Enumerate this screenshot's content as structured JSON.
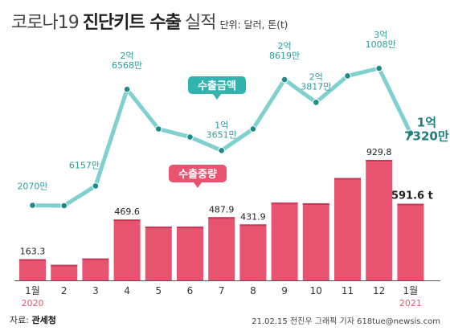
{
  "title": {
    "part1": "코로나19",
    "part2": "진단키트 수출",
    "part3": "실적",
    "unit": "단위: 달러, 톤(t)"
  },
  "chart_data": {
    "type": "bar+line",
    "categories": [
      "1월",
      "2",
      "3",
      "4",
      "5",
      "6",
      "7",
      "8",
      "9",
      "10",
      "11",
      "12",
      "1월"
    ],
    "year_labels": [
      {
        "index": 0,
        "text": "2020"
      },
      {
        "index": 12,
        "text": "2021"
      }
    ],
    "series": [
      {
        "name": "수출중량",
        "type": "bar",
        "unit": "t",
        "color": "#e8546f",
        "values": [
          163.3,
          120,
          169,
          469.6,
          415,
          415,
          487.9,
          431.9,
          600,
          595,
          790,
          929.8,
          591.6
        ],
        "data_labels": [
          {
            "index": 0,
            "text": "163.3"
          },
          {
            "index": 3,
            "text": "469.6"
          },
          {
            "index": 6,
            "text": "487.9"
          },
          {
            "index": 7,
            "text": "431.9"
          },
          {
            "index": 11,
            "text": "929.8"
          },
          {
            "index": 12,
            "text": "591.6 t"
          }
        ]
      },
      {
        "name": "수출금액",
        "type": "line",
        "unit": "달러",
        "color": "#7fd0cf",
        "values": [
          20700000,
          20000000,
          61570000,
          265680000,
          182000000,
          165000000,
          136510000,
          182000000,
          286190000,
          238170000,
          294000000,
          310080000,
          173200000
        ],
        "data_labels": [
          {
            "index": 0,
            "text": "2070만"
          },
          {
            "index": 2,
            "text": "6157만"
          },
          {
            "index": 3,
            "line1": "2억",
            "line2": "6568만"
          },
          {
            "index": 6,
            "line1": "1억",
            "line2": "3651만"
          },
          {
            "index": 8,
            "line1": "2억",
            "line2": "8619만"
          },
          {
            "index": 9,
            "line1": "2억",
            "line2": "3817만"
          },
          {
            "index": 11,
            "line1": "3억",
            "line2": "1008만"
          },
          {
            "index": 12,
            "line1": "1억",
            "line2": "7320만"
          }
        ]
      }
    ]
  },
  "footer": {
    "source_label": "자료:",
    "source": "관세청",
    "credit": "21.02.15 전진우 그래픽 기자 618tue@newsis.com"
  }
}
